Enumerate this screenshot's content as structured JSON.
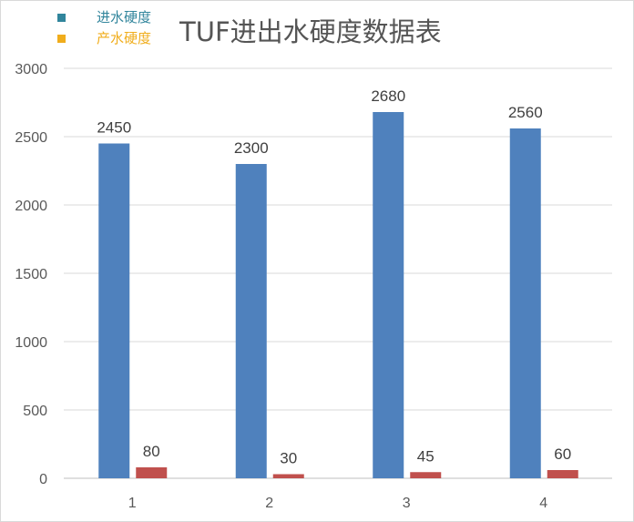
{
  "chart_data": {
    "type": "bar",
    "title": "TUF进出水硬度数据表",
    "categories": [
      "1",
      "2",
      "3",
      "4"
    ],
    "series": [
      {
        "name": "进水硬度",
        "values": [
          2450,
          2300,
          2680,
          2560
        ],
        "color": "#4f81bd",
        "legend_color": "#31859c"
      },
      {
        "name": "产水硬度",
        "values": [
          80,
          30,
          45,
          60
        ],
        "color": "#c0504d",
        "legend_color": "#f0ad1c"
      }
    ],
    "ylim": [
      0,
      3000
    ],
    "yticks": [
      0,
      500,
      1000,
      1500,
      2000,
      2500,
      3000
    ],
    "grid": true,
    "legend_position": "top-left",
    "data_labels": true
  }
}
